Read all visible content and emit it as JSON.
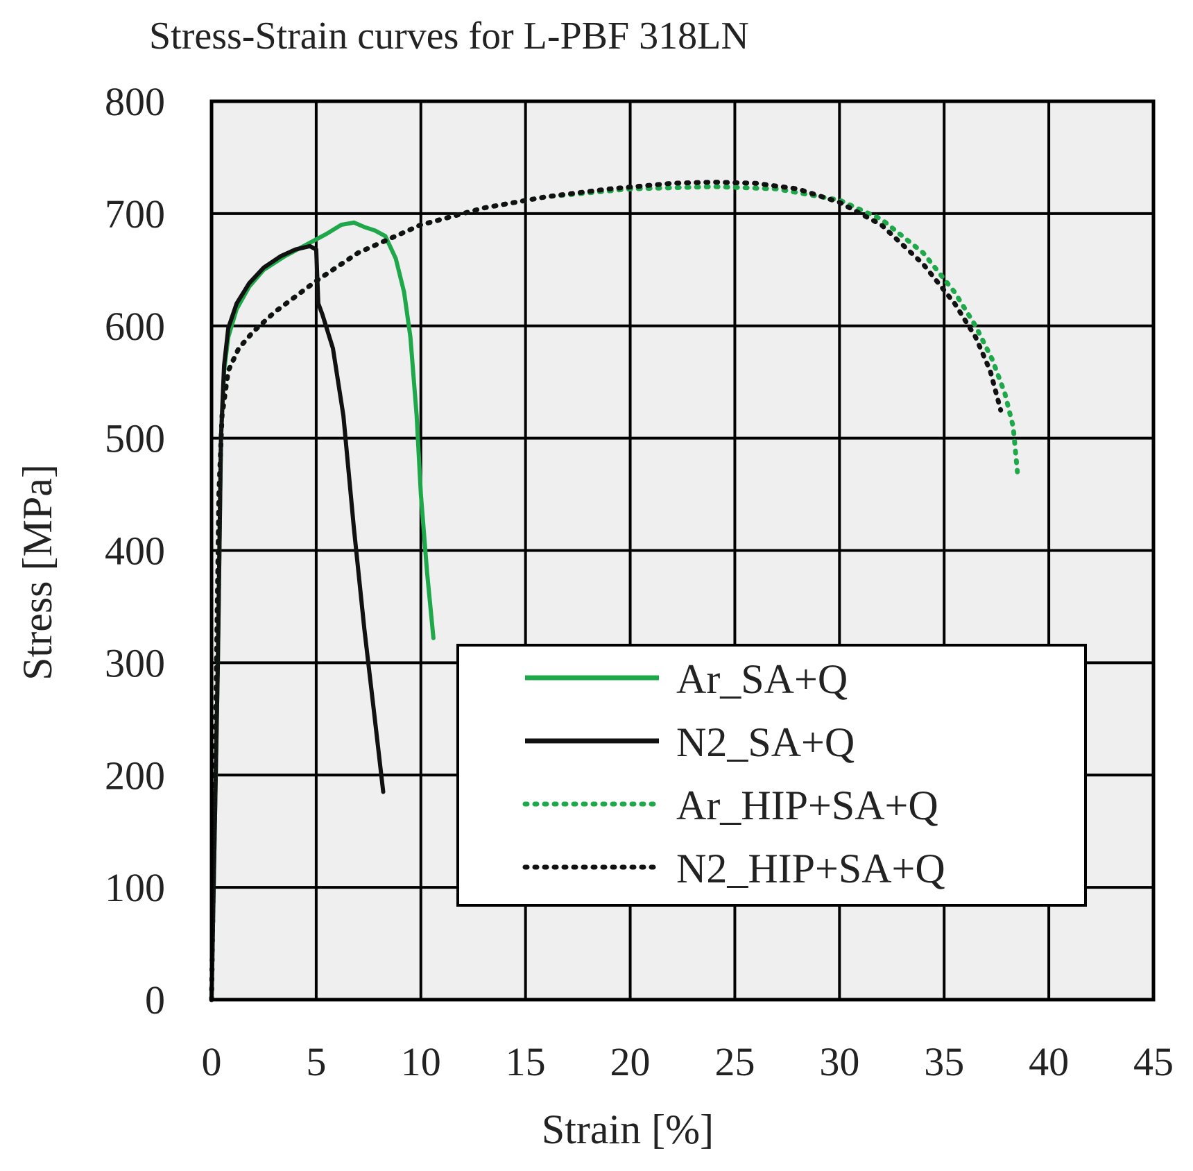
{
  "chart_data": {
    "type": "line",
    "title": "Stress-Strain curves for L-PBF 318LN",
    "xlabel": "Strain [%]",
    "ylabel": "Stress [MPa]",
    "xlim": [
      0,
      45
    ],
    "ylim": [
      0,
      800
    ],
    "xticks": [
      "0",
      "5",
      "10",
      "15",
      "20",
      "25",
      "30",
      "35",
      "40",
      "45"
    ],
    "yticks": [
      "0",
      "100",
      "200",
      "300",
      "400",
      "500",
      "600",
      "700",
      "800"
    ],
    "grid": true,
    "legend_position": "lower-right",
    "series": [
      {
        "name": "Ar_SA+Q",
        "color": "#1fa84a",
        "style": "solid",
        "x": [
          0,
          0.3,
          0.45,
          0.6,
          0.8,
          1.2,
          1.8,
          2.5,
          3.5,
          4.5,
          5.5,
          6.2,
          6.8,
          7.3,
          7.8,
          8.3,
          8.8,
          9.2,
          9.5,
          9.8,
          10.0,
          10.3,
          10.6
        ],
        "y": [
          0,
          300,
          500,
          560,
          590,
          615,
          635,
          650,
          662,
          672,
          682,
          690,
          692,
          688,
          685,
          680,
          660,
          630,
          590,
          520,
          450,
          380,
          322
        ]
      },
      {
        "name": "N2_SA+Q",
        "color": "#111111",
        "style": "solid",
        "x": [
          0,
          0.3,
          0.45,
          0.6,
          0.8,
          1.2,
          1.8,
          2.5,
          3.3,
          4.0,
          4.7,
          5.0,
          5.1,
          5.3,
          5.8,
          6.3,
          6.8,
          7.3,
          7.8,
          8.2
        ],
        "y": [
          0,
          300,
          500,
          565,
          598,
          620,
          638,
          652,
          662,
          668,
          671,
          668,
          620,
          610,
          580,
          520,
          420,
          330,
          250,
          185
        ]
      },
      {
        "name": "Ar_HIP+SA+Q",
        "color": "#1fa84a",
        "style": "dotted",
        "x": [
          0,
          0.2,
          0.35,
          0.5,
          0.8,
          1.3,
          2,
          3,
          5,
          7,
          10,
          13,
          16,
          20,
          24,
          27,
          30,
          32,
          34,
          35.5,
          36.5,
          37.3,
          37.9,
          38.3,
          38.5
        ],
        "y": [
          0,
          250,
          450,
          520,
          560,
          580,
          595,
          612,
          640,
          665,
          690,
          705,
          715,
          722,
          724,
          722,
          712,
          695,
          665,
          630,
          600,
          570,
          540,
          510,
          470
        ]
      },
      {
        "name": "N2_HIP+SA+Q",
        "color": "#111111",
        "style": "dotted",
        "x": [
          0,
          0.2,
          0.35,
          0.5,
          0.8,
          1.3,
          2,
          3,
          5,
          7,
          10,
          13,
          16,
          19,
          22,
          24,
          26,
          28,
          30,
          32,
          34,
          35.5,
          36.5,
          37.2,
          37.7
        ],
        "y": [
          0,
          250,
          450,
          520,
          560,
          580,
          595,
          612,
          640,
          665,
          690,
          705,
          715,
          722,
          727,
          728,
          727,
          722,
          710,
          690,
          655,
          620,
          590,
          560,
          525
        ]
      }
    ]
  }
}
